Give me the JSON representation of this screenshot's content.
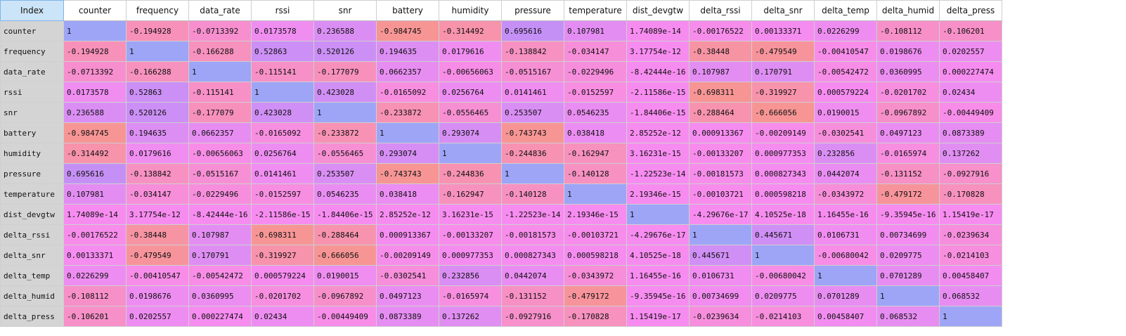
{
  "index_label": "Index",
  "columns": [
    "counter",
    "frequency",
    "data_rate",
    "rssi",
    "snr",
    "battery",
    "humidity",
    "pressure",
    "temperature",
    "dist_devgtw",
    "delta_rssi",
    "delta_snr",
    "delta_temp",
    "delta_humid",
    "delta_press"
  ],
  "rows": [
    {
      "name": "counter",
      "values": [
        "1",
        "-0.194928",
        "-0.0713392",
        "0.0173578",
        "0.236588",
        "-0.984745",
        "-0.314492",
        "0.695616",
        "0.107981",
        "1.74089e-14",
        "-0.00176522",
        "0.00133371",
        "0.0226299",
        "-0.108112",
        "-0.106201"
      ]
    },
    {
      "name": "frequency",
      "values": [
        "-0.194928",
        "1",
        "-0.166288",
        "0.52863",
        "0.520126",
        "0.194635",
        "0.0179616",
        "-0.138842",
        "-0.034147",
        "3.17754e-12",
        "-0.38448",
        "-0.479549",
        "-0.00410547",
        "0.0198676",
        "0.0202557"
      ]
    },
    {
      "name": "data_rate",
      "values": [
        "-0.0713392",
        "-0.166288",
        "1",
        "-0.115141",
        "-0.177079",
        "0.0662357",
        "-0.00656063",
        "-0.0515167",
        "-0.0229496",
        "-8.42444e-16",
        "0.107987",
        "0.170791",
        "-0.00542472",
        "0.0360995",
        "0.000227474"
      ]
    },
    {
      "name": "rssi",
      "values": [
        "0.0173578",
        "0.52863",
        "-0.115141",
        "1",
        "0.423028",
        "-0.0165092",
        "0.0256764",
        "0.0141461",
        "-0.0152597",
        "-2.11586e-15",
        "-0.698311",
        "-0.319927",
        "0.000579224",
        "-0.0201702",
        "0.02434"
      ]
    },
    {
      "name": "snr",
      "values": [
        "0.236588",
        "0.520126",
        "-0.177079",
        "0.423028",
        "1",
        "-0.233872",
        "-0.0556465",
        "0.253507",
        "0.0546235",
        "-1.84406e-15",
        "-0.288464",
        "-0.666056",
        "0.0190015",
        "-0.0967892",
        "-0.00449409"
      ]
    },
    {
      "name": "battery",
      "values": [
        "-0.984745",
        "0.194635",
        "0.0662357",
        "-0.0165092",
        "-0.233872",
        "1",
        "0.293074",
        "-0.743743",
        "0.038418",
        "2.85252e-12",
        "0.000913367",
        "-0.00209149",
        "-0.0302541",
        "0.0497123",
        "0.0873389"
      ]
    },
    {
      "name": "humidity",
      "values": [
        "-0.314492",
        "0.0179616",
        "-0.00656063",
        "0.0256764",
        "-0.0556465",
        "0.293074",
        "1",
        "-0.244836",
        "-0.162947",
        "3.16231e-15",
        "-0.00133207",
        "0.000977353",
        "0.232856",
        "-0.0165974",
        "0.137262"
      ]
    },
    {
      "name": "pressure",
      "values": [
        "0.695616",
        "-0.138842",
        "-0.0515167",
        "0.0141461",
        "0.253507",
        "-0.743743",
        "-0.244836",
        "1",
        "-0.140128",
        "-1.22523e-14",
        "-0.00181573",
        "0.000827343",
        "0.0442074",
        "-0.131152",
        "-0.0927916"
      ]
    },
    {
      "name": "temperature",
      "values": [
        "0.107981",
        "-0.034147",
        "-0.0229496",
        "-0.0152597",
        "0.0546235",
        "0.038418",
        "-0.162947",
        "-0.140128",
        "1",
        "2.19346e-15",
        "-0.00103721",
        "0.000598218",
        "-0.0343972",
        "-0.479172",
        "-0.170828"
      ]
    },
    {
      "name": "dist_devgtw",
      "values": [
        "1.74089e-14",
        "3.17754e-12",
        "-8.42444e-16",
        "-2.11586e-15",
        "-1.84406e-15",
        "2.85252e-12",
        "3.16231e-15",
        "-1.22523e-14",
        "2.19346e-15",
        "1",
        "-4.29676e-17",
        "4.10525e-18",
        "1.16455e-16",
        "-9.35945e-16",
        "1.15419e-17"
      ]
    },
    {
      "name": "delta_rssi",
      "values": [
        "-0.00176522",
        "-0.38448",
        "0.107987",
        "-0.698311",
        "-0.288464",
        "0.000913367",
        "-0.00133207",
        "-0.00181573",
        "-0.00103721",
        "-4.29676e-17",
        "1",
        "0.445671",
        "0.0106731",
        "0.00734699",
        "-0.0239634"
      ]
    },
    {
      "name": "delta_snr",
      "values": [
        "0.00133371",
        "-0.479549",
        "0.170791",
        "-0.319927",
        "-0.666056",
        "-0.00209149",
        "0.000977353",
        "0.000827343",
        "0.000598218",
        "4.10525e-18",
        "0.445671",
        "1",
        "-0.00680042",
        "0.0209775",
        "-0.0214103"
      ]
    },
    {
      "name": "delta_temp",
      "values": [
        "0.0226299",
        "-0.00410547",
        "-0.00542472",
        "0.000579224",
        "0.0190015",
        "-0.0302541",
        "0.232856",
        "0.0442074",
        "-0.0343972",
        "1.16455e-16",
        "0.0106731",
        "-0.00680042",
        "1",
        "0.0701289",
        "0.00458407"
      ]
    },
    {
      "name": "delta_humid",
      "values": [
        "-0.108112",
        "0.0198676",
        "0.0360995",
        "-0.0201702",
        "-0.0967892",
        "0.0497123",
        "-0.0165974",
        "-0.131152",
        "-0.479172",
        "-9.35945e-16",
        "0.00734699",
        "0.0209775",
        "0.0701289",
        "1",
        "0.068532"
      ]
    },
    {
      "name": "delta_press",
      "values": [
        "-0.106201",
        "0.0202557",
        "0.000227474",
        "0.02434",
        "-0.00449409",
        "0.0873389",
        "0.137262",
        "-0.0927916",
        "-0.170828",
        "1.15419e-17",
        "-0.0239634",
        "-0.0214103",
        "0.00458407",
        "0.068532",
        "1"
      ]
    }
  ],
  "colors": {
    "diagonal": "#9ea5f7",
    "strong_negative": "#f79595",
    "neutral": "#f78cf0",
    "strong_positive": "#c090f7",
    "index_header_bg": "#cce4f7",
    "row_header_bg": "#d4d4d4"
  }
}
